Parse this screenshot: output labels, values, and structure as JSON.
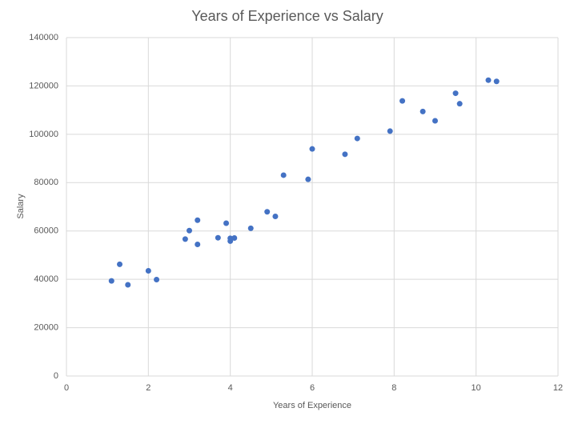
{
  "chart_data": {
    "type": "scatter",
    "title": "Years of Experience vs Salary",
    "x_label": "Years of Experience",
    "y_label": "Salary",
    "color": "#4472c4",
    "grid": true,
    "x": [
      1.1,
      1.3,
      1.5,
      2.0,
      2.2,
      2.9,
      3.0,
      3.2,
      3.2,
      3.7,
      3.9,
      4.0,
      4.0,
      4.1,
      4.5,
      4.9,
      5.1,
      5.3,
      5.9,
      6.0,
      6.8,
      7.1,
      7.9,
      8.2,
      8.7,
      9.0,
      9.5,
      9.6,
      10.3,
      10.5
    ],
    "values": [
      39343,
      46205,
      37731,
      43525,
      39891,
      56642,
      60150,
      54445,
      64445,
      57189,
      63218,
      55794,
      56957,
      57081,
      61111,
      67938,
      66029,
      83088,
      81363,
      93940,
      91738,
      98273,
      101302,
      113812,
      109431,
      105582,
      116969,
      112635,
      122391,
      121872
    ],
    "xlim": [
      0,
      12
    ],
    "xticks": [
      0,
      2,
      4,
      6,
      8,
      10,
      12
    ],
    "ylim": [
      0,
      140000
    ],
    "yticks": [
      0,
      20000,
      40000,
      60000,
      80000,
      100000,
      120000,
      140000
    ]
  }
}
